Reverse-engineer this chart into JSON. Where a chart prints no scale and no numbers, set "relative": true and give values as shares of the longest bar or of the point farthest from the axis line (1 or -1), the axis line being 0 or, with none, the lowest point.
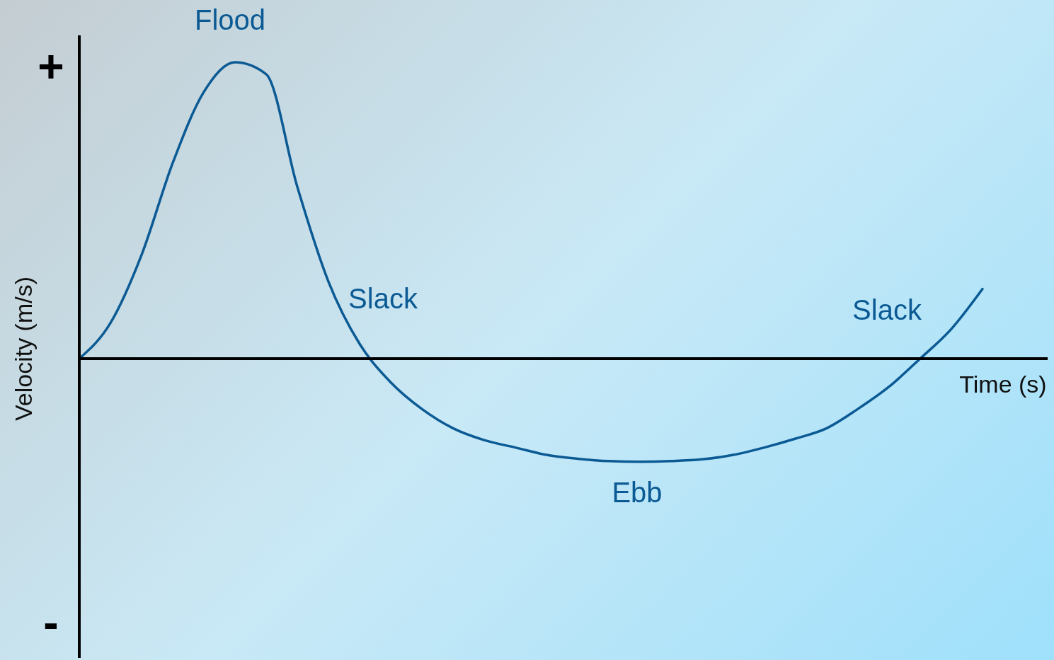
{
  "chart_data": {
    "type": "line",
    "relative": true,
    "xlabel": "Time (s)",
    "ylabel": "Velocity (m/s)",
    "categories": [
      null,
      null,
      null,
      null,
      null,
      null,
      null,
      null,
      null,
      null,
      null,
      null,
      null,
      null,
      null,
      null,
      null,
      null,
      null,
      null,
      null,
      null,
      null,
      null,
      null,
      null,
      null,
      null,
      null,
      null
    ],
    "series": [
      {
        "color": "#0b5a94",
        "values": [
          0,
          0.12,
          0.35,
          0.66,
          0.9,
          1,
          0.96,
          0.58,
          0.26,
          0.05,
          -0.08,
          -0.17,
          -0.235,
          -0.275,
          -0.3,
          -0.325,
          -0.338,
          -0.346,
          -0.348,
          -0.346,
          -0.34,
          -0.325,
          -0.3,
          -0.27,
          -0.235,
          -0.17,
          -0.095,
          0,
          0.1,
          0.235
        ]
      }
    ],
    "annotations": [
      "Flood",
      "Slack",
      "Ebb",
      "Slack",
      "+",
      "-"
    ],
    "marker": "none",
    "line_style": "solid"
  }
}
